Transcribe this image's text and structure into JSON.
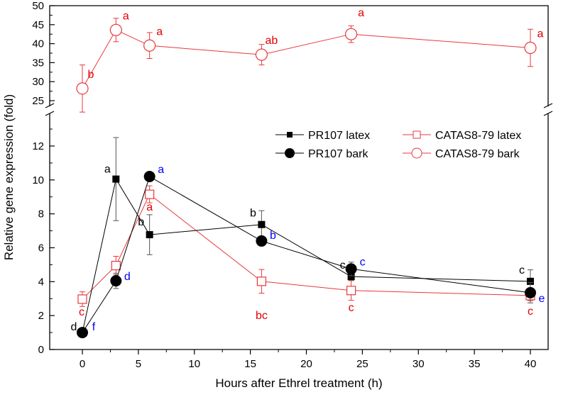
{
  "chart_data": {
    "type": "line",
    "xlabel": "Hours after Ethrel treatment (h)",
    "ylabel": "Relative gene expression (fold)",
    "xlim": [
      -2.7,
      41.7
    ],
    "x_ticks": [
      0,
      5,
      10,
      15,
      20,
      25,
      30,
      35,
      40
    ],
    "y_axis_break": true,
    "ylim_lower": [
      0,
      13.5
    ],
    "ylim_upper": [
      22.5,
      50
    ],
    "y_ticks_lower": [
      0,
      2,
      4,
      6,
      8,
      10,
      12
    ],
    "y_ticks_upper": [
      25,
      30,
      35,
      40,
      45,
      50
    ],
    "legend_placement": "top-right",
    "grid": false,
    "x": [
      0,
      3,
      6,
      16,
      24,
      40
    ],
    "series": [
      {
        "name": "PR107 latex",
        "color": "#000000",
        "marker": "filled-square",
        "values": [
          1.0,
          10.05,
          6.77,
          7.37,
          4.3,
          4.02
        ],
        "errors": [
          0.1,
          2.45,
          1.18,
          0.82,
          0.2,
          0.68
        ],
        "letters": [
          "d",
          "a",
          "b",
          "b",
          "c",
          "c"
        ],
        "letter_color": "#000000"
      },
      {
        "name": "PR107 bark",
        "color": "#000000",
        "marker": "filled-circle",
        "values": [
          1.0,
          4.05,
          10.2,
          6.4,
          4.75,
          3.35
        ],
        "errors": [
          0.1,
          0.45,
          0.2,
          0.2,
          0.4,
          0.6
        ],
        "letters": [
          "f",
          "d",
          "a",
          "b",
          "c",
          "e"
        ],
        "letter_color": "#0000ff"
      },
      {
        "name": "CATAS8-79 latex",
        "color": "#e8393c",
        "marker": "open-square",
        "values": [
          2.97,
          4.95,
          9.15,
          4.02,
          3.48,
          3.18
        ],
        "errors": [
          0.43,
          0.55,
          0.5,
          0.7,
          0.58,
          0.3
        ],
        "letters": [
          "c",
          "",
          "a",
          "bc",
          "c",
          "c"
        ],
        "letter_color": "#e00000"
      },
      {
        "name": "CATAS8-79 bark",
        "color": "#e8393c",
        "marker": "open-circle",
        "values": [
          28.2,
          43.6,
          39.5,
          37.1,
          42.5,
          38.9
        ],
        "errors": [
          6.2,
          3.1,
          3.4,
          2.7,
          2.2,
          4.9
        ],
        "letters": [
          "b",
          "a",
          "a",
          "ab",
          "a",
          "a"
        ],
        "letter_color": "#e00000"
      }
    ]
  }
}
